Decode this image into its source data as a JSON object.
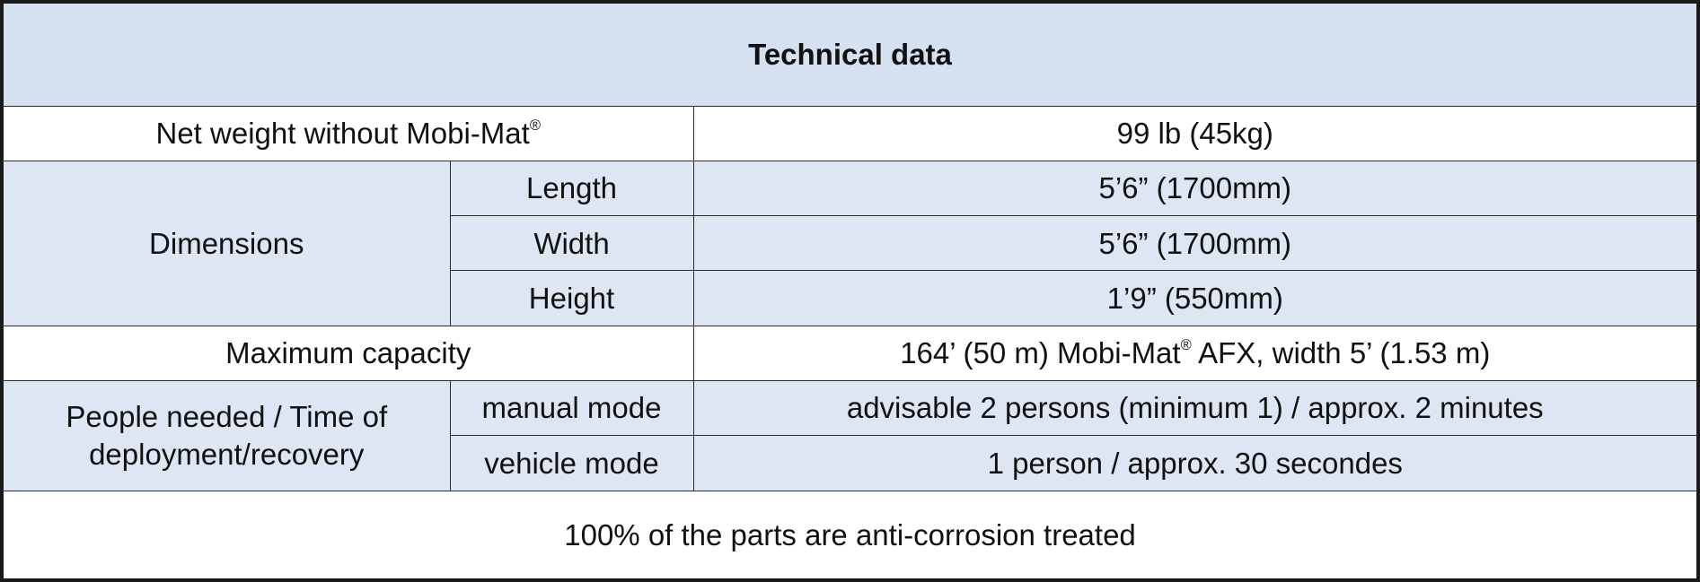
{
  "table": {
    "title": "Technical data",
    "net_weight": {
      "label": "Net weight without Mobi-Mat",
      "label_mark": "®",
      "value": "99 lb (45kg)"
    },
    "dimensions": {
      "label": "Dimensions",
      "rows": [
        {
          "sub": "Length",
          "value": "5’6”  (1700mm)"
        },
        {
          "sub": "Width",
          "value": "5’6”  (1700mm)"
        },
        {
          "sub": "Height",
          "value": "1’9”  (550mm)"
        }
      ]
    },
    "capacity": {
      "label": "Maximum capacity",
      "value_pre": "164’ (50 m) Mobi-Mat",
      "value_mark": "®",
      "value_post": " AFX, width 5’ (1.53 m)"
    },
    "people": {
      "label": "People needed / Time of deployment/recovery",
      "rows": [
        {
          "sub": "manual mode",
          "value": "advisable 2 persons (minimum 1) / approx. 2 minutes"
        },
        {
          "sub": "vehicle mode",
          "value": "1 person / approx. 30 secondes"
        }
      ]
    },
    "footer": "100% of the parts are anti-corrosion treated"
  }
}
